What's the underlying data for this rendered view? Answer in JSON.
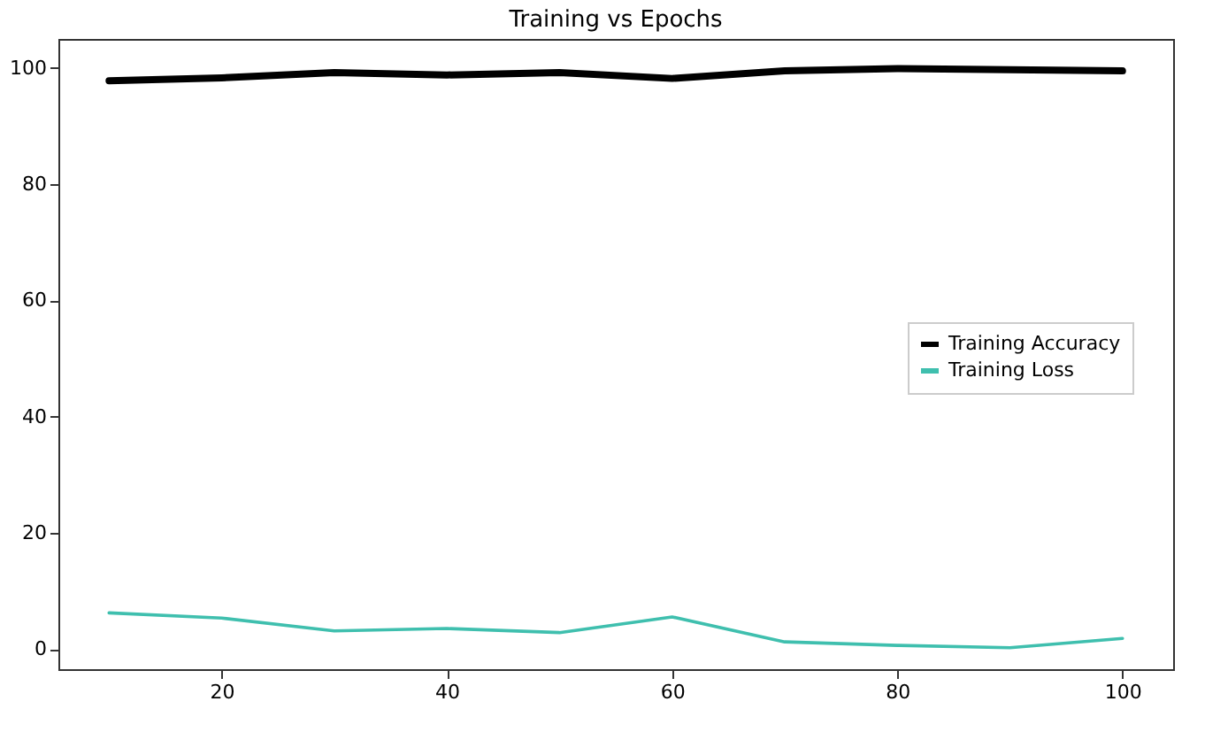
{
  "chart_data": {
    "type": "line",
    "title": "Training vs Epochs",
    "x": [
      10,
      20,
      30,
      40,
      50,
      60,
      70,
      80,
      90,
      100
    ],
    "series": [
      {
        "name": "Training Accuracy",
        "color": "#000000",
        "values": [
          97.8,
          98.3,
          99.2,
          98.8,
          99.2,
          98.2,
          99.5,
          99.9,
          99.7,
          99.5
        ]
      },
      {
        "name": "Training Loss",
        "color": "#3fbfae",
        "values": [
          6.2,
          5.3,
          3.1,
          3.5,
          2.8,
          5.5,
          1.2,
          0.6,
          0.2,
          1.8
        ]
      }
    ],
    "xlim": [
      5.5,
      104.5
    ],
    "ylim": [
      -3.5,
      105
    ],
    "xticks": [
      20,
      40,
      60,
      80,
      100
    ],
    "yticks": [
      0,
      20,
      40,
      60,
      80,
      100
    ],
    "grid": false,
    "legend": "right",
    "marker": "none",
    "line_style": "solid"
  }
}
